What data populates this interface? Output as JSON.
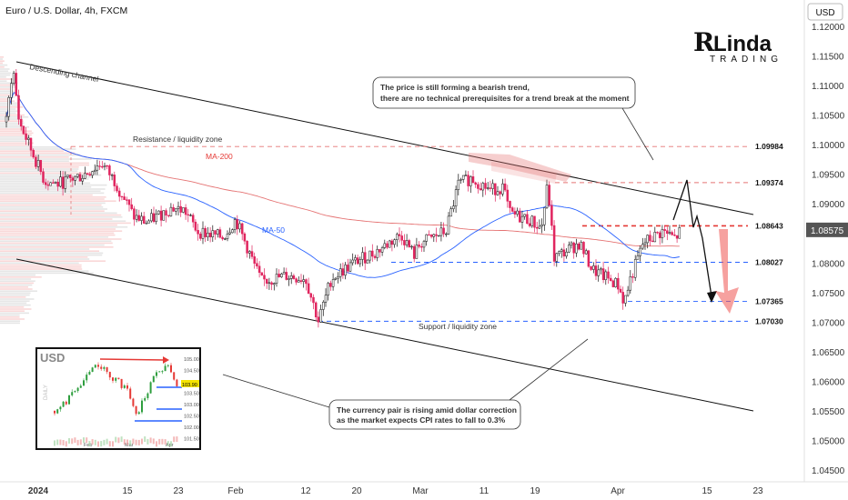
{
  "header": {
    "title": "Euro / U.S. Dollar, 4h, FXCM",
    "currency_button": "USD"
  },
  "logo": {
    "line1": "Linda",
    "line2": "TRADING"
  },
  "chart_data": {
    "type": "candlestick",
    "ylim": [
      1.0445,
      1.1215
    ],
    "y_ticks": [
      "1.12000",
      "1.11500",
      "1.11000",
      "1.10500",
      "1.10000",
      "1.09500",
      "1.09000",
      "1.08500",
      "1.08000",
      "1.07500",
      "1.07000",
      "1.06500",
      "1.06000",
      "1.05500",
      "1.05000",
      "1.04500"
    ],
    "y_tick_values": [
      1.12,
      1.115,
      1.11,
      1.105,
      1.1,
      1.095,
      1.09,
      1.085,
      1.08,
      1.075,
      1.07,
      1.065,
      1.06,
      1.055,
      1.05,
      1.045
    ],
    "x_ticks": [
      {
        "label": "2024",
        "date": "2024-01-01",
        "bold": true
      },
      {
        "label": "15",
        "date": "2024-01-15"
      },
      {
        "label": "23",
        "date": "2024-01-23"
      },
      {
        "label": "Feb",
        "date": "2024-02-01"
      },
      {
        "label": "12",
        "date": "2024-02-12"
      },
      {
        "label": "20",
        "date": "2024-02-20"
      },
      {
        "label": "Mar",
        "date": "2024-03-01"
      },
      {
        "label": "11",
        "date": "2024-03-11"
      },
      {
        "label": "19",
        "date": "2024-03-19"
      },
      {
        "label": "Apr",
        "date": "2024-04-01"
      },
      {
        "label": "15",
        "date": "2024-04-15"
      },
      {
        "label": "23",
        "date": "2024-04-23"
      }
    ],
    "close_path": [
      [
        "2023-12-27",
        1.104
      ],
      [
        "2023-12-28",
        1.1135
      ],
      [
        "2023-12-29",
        1.104
      ],
      [
        "2024-01-02",
        1.094
      ],
      [
        "2024-01-04",
        1.0935
      ],
      [
        "2024-01-08",
        1.095
      ],
      [
        "2024-01-11",
        1.097
      ],
      [
        "2024-01-13",
        1.094
      ],
      [
        "2024-01-16",
        1.088
      ],
      [
        "2024-01-18",
        1.087
      ],
      [
        "2024-01-22",
        1.0895
      ],
      [
        "2024-01-24",
        1.089
      ],
      [
        "2024-01-26",
        1.0855
      ],
      [
        "2024-01-30",
        1.0845
      ],
      [
        "2024-02-01",
        1.0875
      ],
      [
        "2024-02-05",
        1.077
      ],
      [
        "2024-02-07",
        1.0775
      ],
      [
        "2024-02-09",
        1.078
      ],
      [
        "2024-02-12",
        1.0775
      ],
      [
        "2024-02-14",
        1.0703
      ],
      [
        "2024-02-16",
        1.0775
      ],
      [
        "2024-02-20",
        1.0805
      ],
      [
        "2024-02-23",
        1.082
      ],
      [
        "2024-02-27",
        1.085
      ],
      [
        "2024-02-29",
        1.0815
      ],
      [
        "2024-03-01",
        1.0835
      ],
      [
        "2024-03-05",
        1.0855
      ],
      [
        "2024-03-07",
        1.0935
      ],
      [
        "2024-03-09",
        1.0945
      ],
      [
        "2024-03-12",
        1.0925
      ],
      [
        "2024-03-14",
        1.093
      ],
      [
        "2024-03-15",
        1.0885
      ],
      [
        "2024-03-18",
        1.0875
      ],
      [
        "2024-03-20",
        1.086
      ],
      [
        "2024-03-21",
        1.0935
      ],
      [
        "2024-03-22",
        1.081
      ],
      [
        "2024-03-26",
        1.0835
      ],
      [
        "2024-03-28",
        1.079
      ],
      [
        "2024-04-01",
        1.0765
      ],
      [
        "2024-04-02",
        1.0735
      ],
      [
        "2024-04-03",
        1.0775
      ],
      [
        "2024-04-05",
        1.0835
      ],
      [
        "2024-04-08",
        1.0855
      ],
      [
        "2024-04-10",
        1.0843
      ],
      [
        "2024-04-11",
        1.0858
      ]
    ],
    "indicators": [
      {
        "name": "MA-200",
        "color": "#e57373"
      },
      {
        "name": "MA-50",
        "color": "#2962ff"
      }
    ],
    "levels": [
      {
        "label": "1.09984",
        "value": 1.09984,
        "color": "#e57373",
        "style": "dashed"
      },
      {
        "label": "1.09374",
        "value": 1.09374,
        "color": "#e57373",
        "style": "dashed"
      },
      {
        "label": "1.08643",
        "value": 1.08643,
        "color": "#e53935",
        "style": "dashed"
      },
      {
        "label": "1.08027",
        "value": 1.08027,
        "color": "#2962ff",
        "style": "dashed"
      },
      {
        "label": "1.07365",
        "value": 1.07365,
        "color": "#2962ff",
        "style": "dashed"
      },
      {
        "label": "1.07030",
        "value": 1.0703,
        "color": "#2962ff",
        "style": "dashed"
      }
    ],
    "current_price": {
      "label": "1.08575",
      "value": 1.08575
    },
    "annotations": {
      "descending_channel": "Descending channel",
      "resistance_zone": "Resistance / liquidity zone",
      "support_zone": "Support / liquidity zone",
      "ma200_label": "MA-200",
      "ma50_label": "MA-50",
      "callout_top_line1": "The price is still forming a bearish trend,",
      "callout_top_line2": "there are no technical prerequisites for a trend break at the moment",
      "callout_bottom_line1": "The currency pair is rising amid dollar correction",
      "callout_bottom_line2": "as the market expects CPI rates to fall to 0.3%"
    },
    "inset": {
      "title": "USD",
      "y_ticks": [
        "105.00",
        "104.50",
        "104.00",
        "103.50",
        "103.00",
        "102.50",
        "102.00",
        "101.50"
      ],
      "current": "103.90",
      "x_ticks": [
        "Feb",
        "Mar",
        "Apr"
      ],
      "watermark": "DAILY"
    }
  }
}
